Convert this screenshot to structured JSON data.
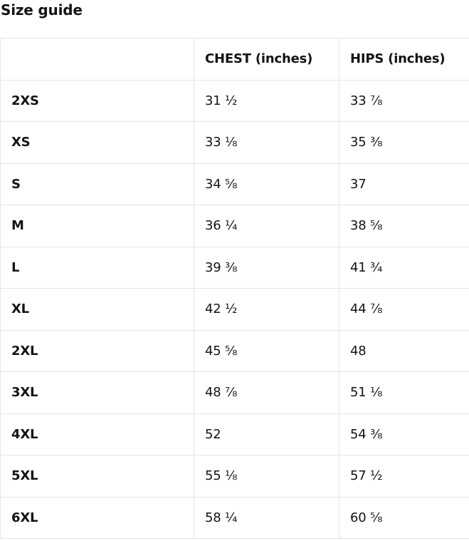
{
  "page": {
    "title": "Size guide"
  },
  "colors": {
    "border": "#e4e4e4",
    "text": "#141414",
    "background": "#ffffff"
  },
  "table": {
    "columns": [
      "",
      "CHEST (inches)",
      "HIPS (inches)"
    ],
    "rows": [
      {
        "size": "2XS",
        "chest": "31 ½",
        "hips": "33 ⅞"
      },
      {
        "size": "XS",
        "chest": "33 ⅛",
        "hips": "35 ⅜"
      },
      {
        "size": "S",
        "chest": "34 ⅝",
        "hips": "37"
      },
      {
        "size": "M",
        "chest": "36 ¼",
        "hips": "38 ⅝"
      },
      {
        "size": "L",
        "chest": "39 ⅜",
        "hips": "41 ¾"
      },
      {
        "size": "XL",
        "chest": "42 ½",
        "hips": "44 ⅞"
      },
      {
        "size": "2XL",
        "chest": "45 ⅝",
        "hips": "48"
      },
      {
        "size": "3XL",
        "chest": "48 ⅞",
        "hips": "51 ⅛"
      },
      {
        "size": "4XL",
        "chest": "52",
        "hips": "54 ⅜"
      },
      {
        "size": "5XL",
        "chest": "55 ⅛",
        "hips": "57 ½"
      },
      {
        "size": "6XL",
        "chest": "58 ¼",
        "hips": "60 ⅝"
      }
    ]
  }
}
